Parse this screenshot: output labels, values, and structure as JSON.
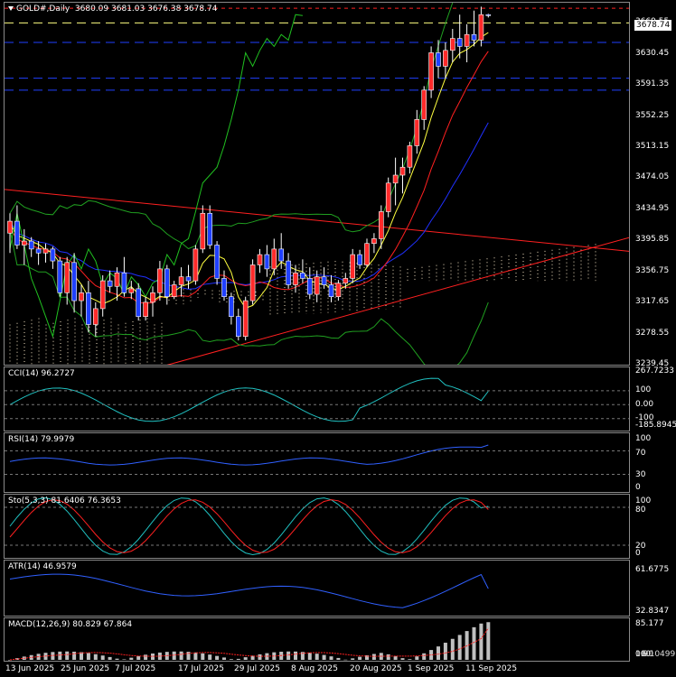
{
  "symbol": {
    "name": "GOLD#,Daily",
    "open": "3680.09",
    "high": "3681.03",
    "low": "3676.38",
    "close": "3678.74"
  },
  "current_price": "3678.74",
  "price_axis": [
    "3669.55",
    "3630.45",
    "3591.35",
    "3552.25",
    "3513.15",
    "3474.05",
    "3434.95",
    "3395.85",
    "3356.75",
    "3317.65",
    "3278.55",
    "3239.45"
  ],
  "dates": [
    "13 Jun 2025",
    "25 Jun 2025",
    "7 Jul 2025",
    "17 Jul 2025",
    "29 Jul 2025",
    "8 Aug 2025",
    "20 Aug 2025",
    "1 Sep 2025",
    "11 Sep 2025"
  ],
  "indicators": {
    "cci": {
      "label": "CCI(14) 96.2727",
      "value": 96.27,
      "axis": [
        "267.7233",
        "100",
        "0.00",
        "-100",
        "-185.8945"
      ]
    },
    "rsi": {
      "label": "RSI(14) 79.9979",
      "value": 80.0,
      "axis": [
        "100",
        "70",
        "30",
        "0"
      ]
    },
    "sto": {
      "label": "Sto(5,3,3) 81.6406 76.3653",
      "main": 81.64,
      "signal": 76.37,
      "axis": [
        "100",
        "80",
        "20",
        "0"
      ]
    },
    "atr": {
      "label": "ATR(14) 46.9579",
      "value": 46.96,
      "axis": [
        "61.6775",
        "32.8347"
      ]
    },
    "macd": {
      "label": "MACD(12,26,9) 80.829 67.864",
      "main": 80.83,
      "signal": 67.86,
      "axis": [
        "85.177",
        "100",
        "0.00"
      ],
      "axis_overlap": "6.10499"
    }
  },
  "colors": {
    "bull": "#ff2a2a",
    "bear": "#2040ff",
    "cci": "#20c0c0",
    "rsi": "#3060ff",
    "sto_main": "#20c0c0",
    "sto_signal": "#ff2020",
    "atr": "#3060ff",
    "macd_hist": "#c0c0c0",
    "macd_signal": "#ff2020",
    "bands": "#20a020",
    "ma_fast": "#ffff40",
    "ma_mid": "#ff2020",
    "ma_slow": "#2030ff"
  },
  "chart_data": {
    "type": "candlestick",
    "symbol": "GOLD#",
    "timeframe": "Daily",
    "ylim": [
      3239.45,
      3695
    ],
    "x": [
      "2025-06-11",
      "2025-06-12",
      "2025-06-13",
      "2025-06-16",
      "2025-06-17",
      "2025-06-18",
      "2025-06-19",
      "2025-06-20",
      "2025-06-23",
      "2025-06-24",
      "2025-06-25",
      "2025-06-26",
      "2025-06-27",
      "2025-06-30",
      "2025-07-01",
      "2025-07-02",
      "2025-07-03",
      "2025-07-04",
      "2025-07-07",
      "2025-07-08",
      "2025-07-09",
      "2025-07-10",
      "2025-07-11",
      "2025-07-14",
      "2025-07-15",
      "2025-07-16",
      "2025-07-17",
      "2025-07-18",
      "2025-07-21",
      "2025-07-22",
      "2025-07-23",
      "2025-07-24",
      "2025-07-25",
      "2025-07-28",
      "2025-07-29",
      "2025-07-30",
      "2025-07-31",
      "2025-08-01",
      "2025-08-04",
      "2025-08-05",
      "2025-08-06",
      "2025-08-07",
      "2025-08-08",
      "2025-08-11",
      "2025-08-12",
      "2025-08-13",
      "2025-08-14",
      "2025-08-15",
      "2025-08-18",
      "2025-08-19",
      "2025-08-20",
      "2025-08-21",
      "2025-08-22",
      "2025-08-25",
      "2025-08-26",
      "2025-08-27",
      "2025-08-28",
      "2025-08-29",
      "2025-09-01",
      "2025-09-02",
      "2025-09-03",
      "2025-09-04",
      "2025-09-05",
      "2025-09-08",
      "2025-09-09",
      "2025-09-10",
      "2025-09-11",
      "2025-09-12"
    ],
    "ohlc": [
      [
        3405,
        3430,
        3380,
        3420
      ],
      [
        3420,
        3440,
        3385,
        3390
      ],
      [
        3390,
        3410,
        3365,
        3395
      ],
      [
        3395,
        3400,
        3375,
        3385
      ],
      [
        3385,
        3395,
        3365,
        3380
      ],
      [
        3380,
        3392,
        3368,
        3385
      ],
      [
        3385,
        3388,
        3360,
        3370
      ],
      [
        3370,
        3375,
        3325,
        3330
      ],
      [
        3330,
        3375,
        3315,
        3368
      ],
      [
        3368,
        3380,
        3305,
        3320
      ],
      [
        3320,
        3340,
        3300,
        3330
      ],
      [
        3330,
        3345,
        3280,
        3290
      ],
      [
        3290,
        3318,
        3275,
        3310
      ],
      [
        3310,
        3352,
        3300,
        3345
      ],
      [
        3345,
        3358,
        3330,
        3338
      ],
      [
        3338,
        3362,
        3320,
        3355
      ],
      [
        3355,
        3375,
        3325,
        3330
      ],
      [
        3330,
        3345,
        3322,
        3335
      ],
      [
        3335,
        3342,
        3295,
        3300
      ],
      [
        3300,
        3325,
        3295,
        3318
      ],
      [
        3318,
        3338,
        3300,
        3330
      ],
      [
        3330,
        3370,
        3320,
        3360
      ],
      [
        3360,
        3365,
        3315,
        3325
      ],
      [
        3325,
        3345,
        3322,
        3340
      ],
      [
        3340,
        3362,
        3325,
        3350
      ],
      [
        3350,
        3365,
        3335,
        3345
      ],
      [
        3345,
        3390,
        3340,
        3385
      ],
      [
        3385,
        3440,
        3380,
        3430
      ],
      [
        3430,
        3440,
        3385,
        3390
      ],
      [
        3390,
        3395,
        3340,
        3348
      ],
      [
        3348,
        3358,
        3320,
        3325
      ],
      [
        3325,
        3330,
        3290,
        3300
      ],
      [
        3300,
        3310,
        3270,
        3275
      ],
      [
        3275,
        3325,
        3270,
        3320
      ],
      [
        3320,
        3372,
        3315,
        3365
      ],
      [
        3365,
        3385,
        3355,
        3378
      ],
      [
        3378,
        3390,
        3350,
        3360
      ],
      [
        3360,
        3398,
        3352,
        3385
      ],
      [
        3385,
        3405,
        3360,
        3370
      ],
      [
        3370,
        3380,
        3335,
        3340
      ],
      [
        3340,
        3365,
        3330,
        3355
      ],
      [
        3355,
        3372,
        3342,
        3348
      ],
      [
        3348,
        3362,
        3322,
        3328
      ],
      [
        3328,
        3358,
        3318,
        3350
      ],
      [
        3350,
        3362,
        3335,
        3340
      ],
      [
        3340,
        3352,
        3318,
        3325
      ],
      [
        3325,
        3346,
        3320,
        3342
      ],
      [
        3342,
        3355,
        3335,
        3348
      ],
      [
        3348,
        3385,
        3342,
        3378
      ],
      [
        3378,
        3384,
        3360,
        3365
      ],
      [
        3365,
        3398,
        3362,
        3392
      ],
      [
        3392,
        3405,
        3380,
        3398
      ],
      [
        3398,
        3440,
        3385,
        3432
      ],
      [
        3432,
        3475,
        3425,
        3468
      ],
      [
        3468,
        3500,
        3440,
        3478
      ],
      [
        3478,
        3500,
        3455,
        3488
      ],
      [
        3488,
        3520,
        3480,
        3515
      ],
      [
        3515,
        3560,
        3505,
        3548
      ],
      [
        3548,
        3590,
        3535,
        3585
      ],
      [
        3585,
        3640,
        3575,
        3632
      ],
      [
        3632,
        3648,
        3600,
        3615
      ],
      [
        3615,
        3645,
        3600,
        3635
      ],
      [
        3635,
        3662,
        3620,
        3650
      ],
      [
        3650,
        3680,
        3625,
        3640
      ],
      [
        3640,
        3668,
        3620,
        3655
      ],
      [
        3655,
        3685,
        3640,
        3648
      ],
      [
        3648,
        3690,
        3640,
        3680
      ],
      [
        3680,
        3681.03,
        3676.38,
        3678.74
      ]
    ]
  }
}
